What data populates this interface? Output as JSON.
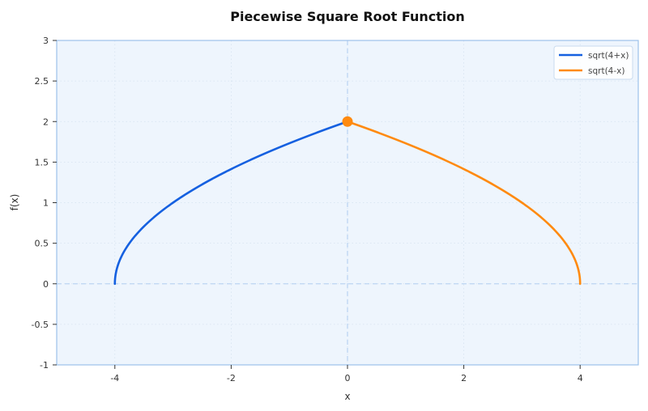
{
  "chart_data": {
    "type": "line",
    "title": "Piecewise Square Root Function",
    "xlabel": "x",
    "ylabel": "f(x)",
    "xlim": [
      -5,
      5
    ],
    "ylim": [
      -1,
      3
    ],
    "xticks": [
      -4,
      -2,
      0,
      2,
      4
    ],
    "xtick_labels": [
      "-4",
      "-2",
      "0",
      "2",
      "4"
    ],
    "yticks": [
      -1,
      -0.5,
      0,
      0.5,
      1,
      1.5,
      2,
      2.5,
      3
    ],
    "ytick_labels": [
      "-1",
      "-0.5",
      "0",
      "0.5",
      "1",
      "1.5",
      "2",
      "2.5",
      "3"
    ],
    "grid": true,
    "legend_position": "upper right",
    "series": [
      {
        "name": "sqrt(4+x)",
        "color": "#1560e0",
        "domain": [
          -4,
          0
        ],
        "x": [
          -4,
          -3.75,
          -3.5,
          -3,
          -2.5,
          -2,
          -1.5,
          -1,
          -0.5,
          0
        ],
        "values": [
          0,
          0.5,
          0.707,
          1,
          1.225,
          1.414,
          1.581,
          1.732,
          1.871,
          2
        ]
      },
      {
        "name": "sqrt(4-x)",
        "color": "#ff8a10",
        "domain": [
          0,
          4
        ],
        "x": [
          0,
          0.5,
          1,
          1.5,
          2,
          2.5,
          3,
          3.5,
          3.75,
          4
        ],
        "values": [
          2,
          1.871,
          1.732,
          1.581,
          1.414,
          1.225,
          1,
          0.707,
          0.5,
          0
        ]
      }
    ],
    "annotations": [
      {
        "type": "point",
        "x": 0,
        "y": 2,
        "color": "#ff8a10"
      },
      {
        "type": "hline",
        "y": 0,
        "style": "dashed"
      },
      {
        "type": "vline",
        "x": 0,
        "style": "dashed"
      }
    ]
  },
  "colors": {
    "plot_background": "#eef5fd",
    "axis_border": "#9cc0ea",
    "grid": "#d5e2f0",
    "reference_line": "#bcd5f2"
  }
}
